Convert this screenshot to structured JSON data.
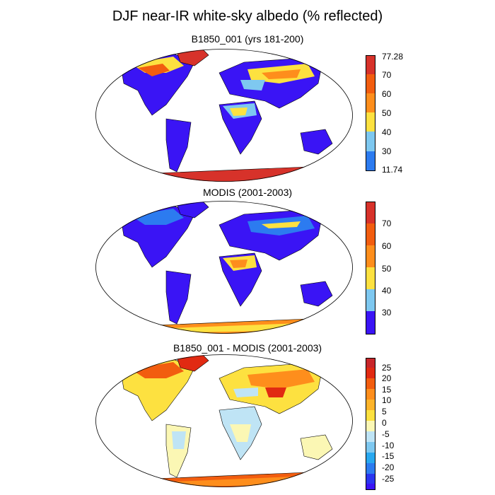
{
  "figure": {
    "title": "DJF near-IR white-sky albedo (% reflected)"
  },
  "panels": [
    {
      "title": "B1850_001 (yrs 181-200)",
      "colorbar": {
        "colors": [
          "#3a14f5",
          "#2c7bf0",
          "#7ec8f0",
          "#fde140",
          "#fe8e1c",
          "#f25d0f",
          "#d7322a"
        ],
        "labels": [
          "77.28",
          "70",
          "60",
          "50",
          "40",
          "30",
          "11.74"
        ]
      }
    },
    {
      "title": "MODIS (2001-2003)",
      "colorbar": {
        "colors": [
          "#3a14f5",
          "#2c7bf0",
          "#7ec8f0",
          "#fde140",
          "#fe8e1c",
          "#f25d0f",
          "#d7322a"
        ],
        "labels": [
          "70",
          "60",
          "50",
          "40",
          "30"
        ]
      }
    },
    {
      "title": "B1850_001 - MODIS (2001-2003)",
      "colorbar": {
        "colors": [
          "#3a14f5",
          "#2a36f0",
          "#2c7bf0",
          "#28a8f0",
          "#7ec8f0",
          "#bfe4f5",
          "#fbf7b4",
          "#fde140",
          "#fdb42a",
          "#fe8e1c",
          "#f25d0f",
          "#e12a12",
          "#c8262a"
        ],
        "labels": [
          "25",
          "20",
          "15",
          "10",
          "5",
          "0",
          "-5",
          "-10",
          "-15",
          "-20",
          "-25"
        ]
      }
    }
  ]
}
